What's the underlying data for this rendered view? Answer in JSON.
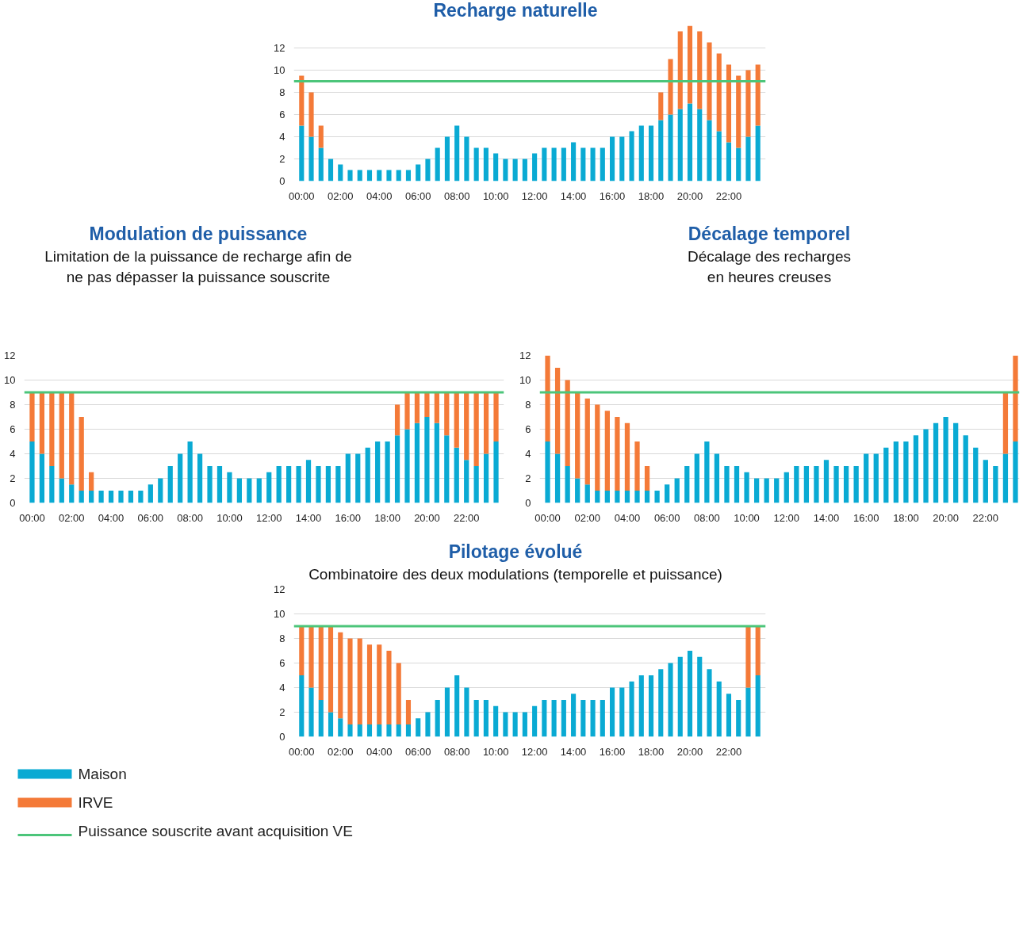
{
  "chart_data": [
    {
      "type": "bar",
      "stacked": true,
      "title": "Recharge naturelle",
      "x": [
        0,
        0.5,
        1,
        1.5,
        2,
        2.5,
        3,
        3.5,
        4,
        4.5,
        5,
        5.5,
        6,
        6.5,
        7,
        7.5,
        8,
        8.5,
        9,
        9.5,
        10,
        10.5,
        11,
        11.5,
        12,
        12.5,
        13,
        13.5,
        14,
        14.5,
        15,
        15.5,
        16,
        16.5,
        17,
        17.5,
        18,
        18.5,
        19,
        19.5,
        20,
        20.5,
        21,
        21.5,
        22,
        22.5,
        23,
        23.5
      ],
      "xlim": [
        -0.4,
        23.9
      ],
      "xticks": [
        {
          "value": 0,
          "label": "00:00"
        },
        {
          "value": 2,
          "label": "02:00"
        },
        {
          "value": 4,
          "label": "04:00"
        },
        {
          "value": 6,
          "label": "06:00"
        },
        {
          "value": 8,
          "label": "08:00"
        },
        {
          "value": 10,
          "label": "10:00"
        },
        {
          "value": 12,
          "label": "12:00"
        },
        {
          "value": 14,
          "label": "14:00"
        },
        {
          "value": 16,
          "label": "16:00"
        },
        {
          "value": 18,
          "label": "18:00"
        },
        {
          "value": 20,
          "label": "20:00"
        },
        {
          "value": 22,
          "label": "22:00"
        }
      ],
      "ylim": [
        0,
        14
      ],
      "yticks": [
        0,
        2,
        4,
        6,
        8,
        10,
        12
      ],
      "grid": "y",
      "series": [
        {
          "color": "#0aaad3",
          "values": [
            5,
            4,
            3,
            2,
            1.5,
            1,
            1,
            1,
            1,
            1,
            1,
            1,
            1.5,
            2,
            3,
            4,
            5,
            4,
            3,
            3,
            2.5,
            2,
            2,
            2,
            2.5,
            3,
            3,
            3,
            3.5,
            3,
            3,
            3,
            4,
            4,
            4.5,
            5,
            5,
            5.5,
            6,
            6.5,
            7,
            6.5,
            5.5,
            4.5,
            3.5,
            3,
            4,
            5
          ]
        },
        {
          "color": "#f47a38",
          "values": [
            4.5,
            4,
            2,
            null,
            null,
            null,
            null,
            null,
            null,
            null,
            null,
            null,
            null,
            null,
            null,
            null,
            null,
            null,
            null,
            null,
            null,
            null,
            null,
            null,
            null,
            null,
            null,
            null,
            null,
            null,
            null,
            null,
            null,
            null,
            null,
            null,
            null,
            2.5,
            5,
            7,
            7,
            7,
            7,
            7,
            7,
            6.5,
            6,
            5.5
          ]
        }
      ],
      "ref_lines": [
        {
          "axis": "y",
          "value": 9,
          "color": "#4cc57a"
        }
      ]
    },
    {
      "type": "bar",
      "stacked": true,
      "title": "Modulation de puissance",
      "subtitle": "Limitation de la puissance de recharge afin de ne pas dépasser la puissance souscrite",
      "x": [
        0,
        0.5,
        1,
        1.5,
        2,
        2.5,
        3,
        3.5,
        4,
        4.5,
        5,
        5.5,
        6,
        6.5,
        7,
        7.5,
        8,
        8.5,
        9,
        9.5,
        10,
        10.5,
        11,
        11.5,
        12,
        12.5,
        13,
        13.5,
        14,
        14.5,
        15,
        15.5,
        16,
        16.5,
        17,
        17.5,
        18,
        18.5,
        19,
        19.5,
        20,
        20.5,
        21,
        21.5,
        22,
        22.5,
        23,
        23.5
      ],
      "xlim": [
        -0.4,
        23.9
      ],
      "xticks": [
        {
          "value": 0,
          "label": "00:00"
        },
        {
          "value": 2,
          "label": "02:00"
        },
        {
          "value": 4,
          "label": "04:00"
        },
        {
          "value": 6,
          "label": "06:00"
        },
        {
          "value": 8,
          "label": "08:00"
        },
        {
          "value": 10,
          "label": "10:00"
        },
        {
          "value": 12,
          "label": "12:00"
        },
        {
          "value": 14,
          "label": "14:00"
        },
        {
          "value": 16,
          "label": "16:00"
        },
        {
          "value": 18,
          "label": "18:00"
        },
        {
          "value": 20,
          "label": "20:00"
        },
        {
          "value": 22,
          "label": "22:00"
        }
      ],
      "ylim": [
        0,
        12
      ],
      "yticks": [
        0,
        2,
        4,
        6,
        8,
        10,
        12
      ],
      "grid": "y",
      "series": [
        {
          "color": "#0aaad3",
          "values": [
            5,
            4,
            3,
            2,
            1.5,
            1,
            1,
            1,
            1,
            1,
            1,
            1,
            1.5,
            2,
            3,
            4,
            5,
            4,
            3,
            3,
            2.5,
            2,
            2,
            2,
            2.5,
            3,
            3,
            3,
            3.5,
            3,
            3,
            3,
            4,
            4,
            4.5,
            5,
            5,
            5.5,
            6,
            6.5,
            7,
            6.5,
            5.5,
            4.5,
            3.5,
            3,
            4,
            5
          ]
        },
        {
          "color": "#f47a38",
          "values": [
            4,
            5,
            6,
            7,
            7.5,
            6,
            1.5,
            null,
            null,
            null,
            null,
            null,
            null,
            null,
            null,
            null,
            null,
            null,
            null,
            null,
            null,
            null,
            null,
            null,
            null,
            null,
            null,
            null,
            null,
            null,
            null,
            null,
            null,
            null,
            null,
            null,
            null,
            2.5,
            3,
            2.5,
            2,
            2.5,
            3.5,
            4.5,
            5.5,
            6,
            5,
            4
          ]
        }
      ],
      "ref_lines": [
        {
          "axis": "y",
          "value": 9,
          "color": "#4cc57a"
        }
      ]
    },
    {
      "type": "bar",
      "stacked": true,
      "title": "Décalage temporel",
      "subtitle": "Décalage des recharges en heures creuses",
      "x": [
        0,
        0.5,
        1,
        1.5,
        2,
        2.5,
        3,
        3.5,
        4,
        4.5,
        5,
        5.5,
        6,
        6.5,
        7,
        7.5,
        8,
        8.5,
        9,
        9.5,
        10,
        10.5,
        11,
        11.5,
        12,
        12.5,
        13,
        13.5,
        14,
        14.5,
        15,
        15.5,
        16,
        16.5,
        17,
        17.5,
        18,
        18.5,
        19,
        19.5,
        20,
        20.5,
        21,
        21.5,
        22,
        22.5,
        23,
        23.5
      ],
      "xlim": [
        -0.4,
        23.7
      ],
      "xticks": [
        {
          "value": 0,
          "label": "00:00"
        },
        {
          "value": 2,
          "label": "02:00"
        },
        {
          "value": 4,
          "label": "04:00"
        },
        {
          "value": 6,
          "label": "06:00"
        },
        {
          "value": 8,
          "label": "08:00"
        },
        {
          "value": 10,
          "label": "10:00"
        },
        {
          "value": 12,
          "label": "12:00"
        },
        {
          "value": 14,
          "label": "14:00"
        },
        {
          "value": 16,
          "label": "16:00"
        },
        {
          "value": 18,
          "label": "18:00"
        },
        {
          "value": 20,
          "label": "20:00"
        },
        {
          "value": 22,
          "label": "22:00"
        }
      ],
      "ylim": [
        0,
        12
      ],
      "yticks": [
        0,
        2,
        4,
        6,
        8,
        10,
        12
      ],
      "grid": "y",
      "series": [
        {
          "color": "#0aaad3",
          "values": [
            5,
            4,
            3,
            2,
            1.5,
            1,
            1,
            1,
            1,
            1,
            1,
            1,
            1.5,
            2,
            3,
            4,
            5,
            4,
            3,
            3,
            2.5,
            2,
            2,
            2,
            2.5,
            3,
            3,
            3,
            3.5,
            3,
            3,
            3,
            4,
            4,
            4.5,
            5,
            5,
            5.5,
            6,
            6.5,
            7,
            6.5,
            5.5,
            4.5,
            3.5,
            3,
            4,
            5
          ]
        },
        {
          "color": "#f47a38",
          "values": [
            7,
            7,
            7,
            7,
            7,
            7,
            6.5,
            6,
            5.5,
            4,
            2,
            null,
            null,
            null,
            null,
            null,
            null,
            null,
            null,
            null,
            null,
            null,
            null,
            null,
            null,
            null,
            null,
            null,
            null,
            null,
            null,
            null,
            null,
            null,
            null,
            null,
            null,
            null,
            null,
            null,
            null,
            null,
            null,
            null,
            null,
            null,
            5,
            7
          ]
        }
      ],
      "ref_lines": [
        {
          "axis": "y",
          "value": 9,
          "color": "#4cc57a"
        }
      ]
    },
    {
      "type": "bar",
      "stacked": true,
      "title": "Pilotage évolué",
      "subtitle": "Combinatoire des deux modulations (temporelle et puissance)",
      "x": [
        0,
        0.5,
        1,
        1.5,
        2,
        2.5,
        3,
        3.5,
        4,
        4.5,
        5,
        5.5,
        6,
        6.5,
        7,
        7.5,
        8,
        8.5,
        9,
        9.5,
        10,
        10.5,
        11,
        11.5,
        12,
        12.5,
        13,
        13.5,
        14,
        14.5,
        15,
        15.5,
        16,
        16.5,
        17,
        17.5,
        18,
        18.5,
        19,
        19.5,
        20,
        20.5,
        21,
        21.5,
        22,
        22.5,
        23,
        23.5
      ],
      "xlim": [
        -0.4,
        23.9
      ],
      "xticks": [
        {
          "value": 0,
          "label": "00:00"
        },
        {
          "value": 2,
          "label": "02:00"
        },
        {
          "value": 4,
          "label": "04:00"
        },
        {
          "value": 6,
          "label": "06:00"
        },
        {
          "value": 8,
          "label": "08:00"
        },
        {
          "value": 10,
          "label": "10:00"
        },
        {
          "value": 12,
          "label": "12:00"
        },
        {
          "value": 14,
          "label": "14:00"
        },
        {
          "value": 16,
          "label": "16:00"
        },
        {
          "value": 18,
          "label": "18:00"
        },
        {
          "value": 20,
          "label": "20:00"
        },
        {
          "value": 22,
          "label": "22:00"
        }
      ],
      "ylim": [
        0,
        12
      ],
      "yticks": [
        0,
        2,
        4,
        6,
        8,
        10,
        12
      ],
      "grid": "y",
      "legend": "bottom left",
      "series": [
        {
          "name": "Maison",
          "color": "#0aaad3",
          "values": [
            5,
            4,
            3,
            2,
            1.5,
            1,
            1,
            1,
            1,
            1,
            1,
            1,
            1.5,
            2,
            3,
            4,
            5,
            4,
            3,
            3,
            2.5,
            2,
            2,
            2,
            2.5,
            3,
            3,
            3,
            3.5,
            3,
            3,
            3,
            4,
            4,
            4.5,
            5,
            5,
            5.5,
            6,
            6.5,
            7,
            6.5,
            5.5,
            4.5,
            3.5,
            3,
            4,
            5
          ]
        },
        {
          "name": "IRVE",
          "color": "#f47a38",
          "values": [
            4,
            5,
            6,
            7,
            7,
            7,
            7,
            6.5,
            6.5,
            6,
            5,
            2,
            null,
            null,
            null,
            null,
            null,
            null,
            null,
            null,
            null,
            null,
            null,
            null,
            null,
            null,
            null,
            null,
            null,
            null,
            null,
            null,
            null,
            null,
            null,
            null,
            null,
            null,
            null,
            null,
            null,
            null,
            null,
            null,
            null,
            null,
            5,
            4
          ]
        }
      ],
      "ref_lines": [
        {
          "axis": "y",
          "value": 9,
          "color": "#4cc57a",
          "label": "Puissance souscrite avant acquisition VE"
        }
      ]
    }
  ]
}
